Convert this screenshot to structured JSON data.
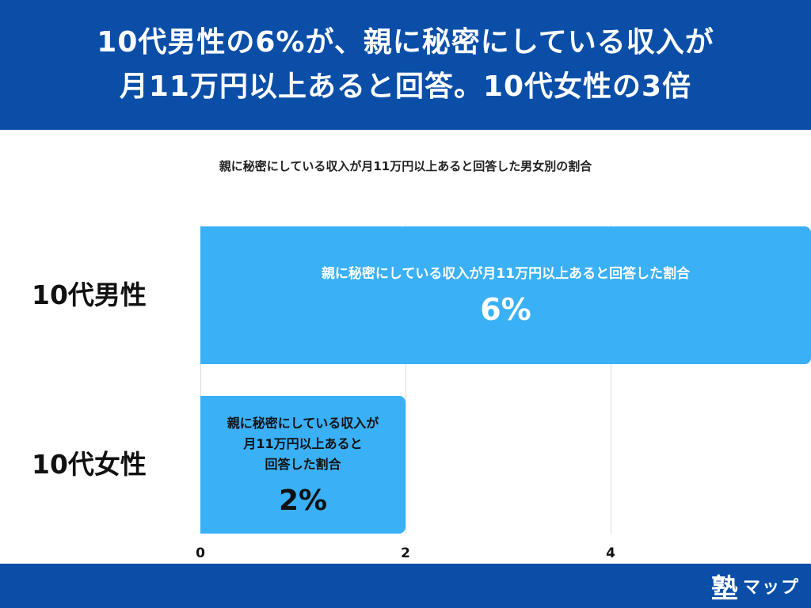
{
  "header": {
    "title": "10代男性の6%が、親に秘密にしている収入が\n月11万円以上あると回答。10代女性の3倍"
  },
  "chart_data": {
    "type": "bar",
    "orientation": "horizontal",
    "title": "親に秘密にしている収入が月11万円以上あると回答した男女別の割合",
    "categories": [
      "10代男性",
      "10代女性"
    ],
    "series": [
      {
        "values": [
          6,
          2
        ],
        "bar_labels": [
          "親に秘密にしている収入が月11万円以上あると回答した割合",
          "親に秘密にしている収入が\n月11万円以上あると\n回答した割合"
        ],
        "value_labels": [
          "6%",
          "2%"
        ]
      }
    ],
    "xlim": [
      0,
      6
    ],
    "xticks": [
      "0",
      "2",
      "4"
    ],
    "grid": true,
    "colors": {
      "bar": "#3ab0f7",
      "header": "#0a4ea8",
      "gridline": "#dcdcdc"
    }
  },
  "footer": {
    "logo_kanji": "塾",
    "logo_kana": "マップ"
  }
}
